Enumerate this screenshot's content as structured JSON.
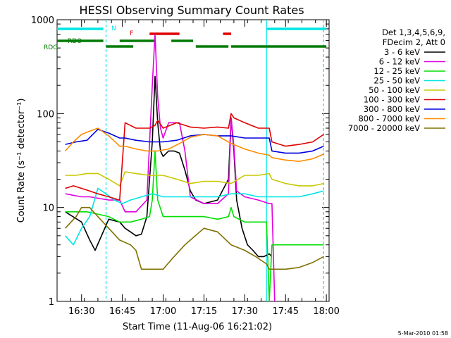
{
  "chart_data": {
    "type": "line",
    "title": "HESSI Observing Summary Count Rates",
    "xlabel": "Start Time (11-Aug-06 16:21:02)",
    "ylabel": "Count Rate (s⁻¹ detector⁻¹)",
    "yscale": "log",
    "ylim": [
      1,
      1000
    ],
    "xlim": [
      "16:21",
      "18:01"
    ],
    "x_tick_labels": [
      "16:30",
      "16:45",
      "17:00",
      "17:15",
      "17:30",
      "17:45",
      "18:00"
    ],
    "y_tick_labels": [
      "1",
      "10",
      "100",
      "1000"
    ],
    "grid": false,
    "legend_position": "right",
    "legend_header": [
      "Det 1,3,4,5,6,9,",
      "FDecim 2, Att 0"
    ],
    "footer_stamp": "5-Mar-2010 01:58",
    "flags": [
      {
        "label": "N",
        "color": "#00e5e5"
      },
      {
        "label": "F",
        "color": "#e00000"
      },
      {
        "label": "RDO",
        "color": "#007a00"
      },
      {
        "label": "RDG",
        "color": "#007a00"
      }
    ],
    "series": [
      {
        "name": "3 - 6 keV",
        "color": "#000000",
        "x": [
          "16:24",
          "16:30",
          "16:33",
          "16:35",
          "16:40",
          "16:44",
          "16:46",
          "16:48",
          "16:50",
          "16:52",
          "16:54",
          "16:56",
          "16:57",
          "16:58",
          "16:59",
          "17:00",
          "17:02",
          "17:04",
          "17:06",
          "17:08",
          "17:10",
          "17:12",
          "17:15",
          "17:20",
          "17:24",
          "17:25",
          "17:26",
          "17:27",
          "17:29",
          "17:31",
          "17:33",
          "17:35",
          "17:37",
          "17:39",
          "17:40"
        ],
        "y": [
          9,
          7,
          4.5,
          3.5,
          7.5,
          7,
          6,
          5.5,
          5,
          5.2,
          8,
          50,
          250,
          80,
          40,
          35,
          40,
          40,
          38,
          25,
          15,
          12,
          11,
          12,
          20,
          90,
          40,
          12,
          6,
          4,
          3.5,
          3,
          3,
          3.2,
          3
        ]
      },
      {
        "name": "6 - 12 keV",
        "color": "#e000e0",
        "x": [
          "16:24",
          "16:30",
          "16:33",
          "16:40",
          "16:44",
          "16:46",
          "16:50",
          "16:54",
          "16:56",
          "16:57",
          "16:58",
          "16:59",
          "17:00",
          "17:02",
          "17:06",
          "17:08",
          "17:10",
          "17:15",
          "17:20",
          "17:24",
          "17:25",
          "17:26",
          "17:27",
          "17:30",
          "17:35",
          "17:39",
          "17:40",
          "17:41"
        ],
        "y": [
          14,
          13,
          13,
          12,
          12,
          9,
          9,
          12,
          200,
          700,
          150,
          70,
          55,
          80,
          80,
          40,
          13,
          11,
          11,
          14,
          90,
          45,
          15,
          13,
          12,
          11,
          11,
          0.9
        ]
      },
      {
        "name": "12 - 25 keV",
        "color": "#00e000",
        "x": [
          "16:24",
          "16:30",
          "16:32",
          "16:36",
          "16:40",
          "16:44",
          "16:48",
          "16:52",
          "16:55",
          "16:56",
          "16:57",
          "16:58",
          "17:00",
          "17:05",
          "17:10",
          "17:15",
          "17:20",
          "17:24",
          "17:25",
          "17:26",
          "17:30",
          "17:35",
          "17:38",
          "17:39",
          "17:40",
          "17:42",
          "17:50",
          "17:59"
        ],
        "y": [
          9,
          9,
          9,
          8.5,
          8,
          7,
          7,
          7.5,
          8,
          12,
          40,
          12,
          8,
          8,
          8,
          8,
          7.5,
          8,
          10,
          8,
          7,
          7,
          7,
          0.9,
          4,
          4,
          4,
          4
        ]
      },
      {
        "name": "25 - 50 keV",
        "color": "#00e5e5",
        "x": [
          "16:24",
          "16:27",
          "16:30",
          "16:33",
          "16:36",
          "16:39",
          "16:42",
          "16:45",
          "16:48",
          "16:52",
          "16:56",
          "17:00",
          "17:05",
          "17:10",
          "17:15",
          "17:20",
          "17:25",
          "17:30",
          "17:35",
          "17:39",
          "17:40",
          "17:45",
          "17:50",
          "17:55",
          "17:59"
        ],
        "y": [
          5,
          4,
          6,
          8,
          16,
          14,
          12,
          11,
          12,
          13,
          14,
          13,
          13,
          13,
          13,
          13,
          14,
          14,
          13,
          13,
          13,
          13,
          13,
          14,
          15
        ]
      },
      {
        "name": "50 - 100 keV",
        "color": "#c8c800",
        "x": [
          "16:24",
          "16:28",
          "16:32",
          "16:36",
          "16:40",
          "16:44",
          "16:46",
          "16:50",
          "16:55",
          "17:00",
          "17:05",
          "17:10",
          "17:15",
          "17:20",
          "17:25",
          "17:30",
          "17:35",
          "17:39",
          "17:40",
          "17:45",
          "17:50",
          "17:55",
          "17:59"
        ],
        "y": [
          22,
          22,
          23,
          23,
          20,
          17,
          24,
          23,
          22,
          22,
          20,
          18,
          19,
          19,
          18,
          22,
          22,
          23,
          20,
          18,
          17,
          17,
          18
        ]
      },
      {
        "name": "100 - 300 keV",
        "color": "#e00000",
        "x": [
          "16:24",
          "16:27",
          "16:30",
          "16:33",
          "16:36",
          "16:40",
          "16:44",
          "16:46",
          "16:50",
          "16:55",
          "16:57",
          "16:58",
          "17:00",
          "17:05",
          "17:10",
          "17:15",
          "17:20",
          "17:24",
          "17:25",
          "17:26",
          "17:30",
          "17:35",
          "17:39",
          "17:40",
          "17:45",
          "17:50",
          "17:55",
          "17:59"
        ],
        "y": [
          16,
          17,
          16,
          15,
          14,
          13,
          12,
          80,
          70,
          70,
          75,
          85,
          70,
          80,
          72,
          70,
          72,
          70,
          100,
          90,
          80,
          70,
          70,
          50,
          45,
          47,
          50,
          60
        ]
      },
      {
        "name": "300 - 800 keV",
        "color": "#0000e0",
        "x": [
          "16:24",
          "16:28",
          "16:32",
          "16:36",
          "16:40",
          "16:44",
          "16:46",
          "16:50",
          "16:55",
          "17:00",
          "17:05",
          "17:10",
          "17:15",
          "17:20",
          "17:25",
          "17:30",
          "17:35",
          "17:39",
          "17:40",
          "17:45",
          "17:50",
          "17:55",
          "17:59"
        ],
        "y": [
          47,
          50,
          52,
          68,
          62,
          55,
          55,
          52,
          50,
          50,
          52,
          58,
          60,
          58,
          58,
          55,
          55,
          55,
          40,
          38,
          38,
          40,
          45
        ]
      },
      {
        "name": "800 - 7000 keV",
        "color": "#ff8c00",
        "x": [
          "16:24",
          "16:27",
          "16:30",
          "16:33",
          "16:36",
          "16:40",
          "16:44",
          "16:46",
          "16:50",
          "16:54",
          "16:58",
          "17:02",
          "17:06",
          "17:10",
          "17:15",
          "17:20",
          "17:25",
          "17:30",
          "17:35",
          "17:39",
          "17:40",
          "17:45",
          "17:50",
          "17:55",
          "17:59"
        ],
        "y": [
          40,
          50,
          60,
          65,
          70,
          58,
          45,
          45,
          42,
          40,
          40,
          42,
          48,
          56,
          60,
          58,
          48,
          42,
          38,
          36,
          34,
          32,
          31,
          33,
          37
        ]
      },
      {
        "name": "7000 - 20000 keV",
        "color": "#807000",
        "x": [
          "16:24",
          "16:28",
          "16:30",
          "16:33",
          "16:36",
          "16:40",
          "16:44",
          "16:48",
          "16:50",
          "16:52",
          "17:00",
          "17:04",
          "17:08",
          "17:10",
          "17:15",
          "17:20",
          "17:25",
          "17:30",
          "17:34",
          "17:38",
          "17:39",
          "17:40",
          "17:45",
          "17:50",
          "17:55",
          "17:59"
        ],
        "y": [
          6,
          8,
          10,
          10,
          8,
          6,
          4.5,
          4,
          3.5,
          2.2,
          2.2,
          3,
          4,
          4.5,
          6,
          5.5,
          4,
          3.5,
          3,
          2.5,
          2.2,
          2.2,
          2.2,
          2.3,
          2.6,
          3
        ]
      }
    ]
  }
}
